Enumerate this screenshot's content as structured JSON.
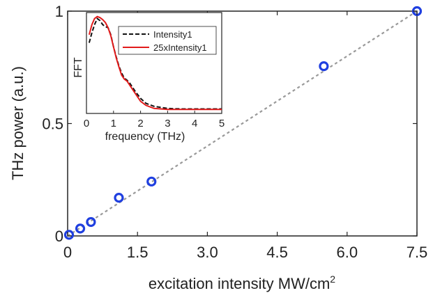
{
  "chart_data": [
    {
      "type": "scatter",
      "xlabel": "excitation intensity MW/cm",
      "xlabel_superscript": "2",
      "ylabel": "THz power (a.u.)",
      "xlim": [
        0,
        7.5
      ],
      "ylim": [
        0,
        1
      ],
      "xticks": [
        "0",
        "1.5",
        "3.0",
        "4.5",
        "6.0",
        "7.5"
      ],
      "xtick_values": [
        0,
        1.5,
        3.0,
        4.5,
        6.0,
        7.5
      ],
      "yticks": [
        "0",
        "0.5",
        "1"
      ],
      "ytick_values": [
        0,
        0.5,
        1
      ],
      "grid": false,
      "series": [
        {
          "marker": "open-circle",
          "color": "#1f3fe0",
          "x": [
            0.03,
            0.27,
            0.5,
            1.1,
            1.8,
            5.5,
            7.5
          ],
          "y": [
            0.005,
            0.033,
            0.062,
            0.17,
            0.242,
            0.755,
            1.0
          ]
        }
      ],
      "fit_line": {
        "style": "dotted",
        "color": "#999999",
        "x": [
          0,
          7.5
        ],
        "y": [
          0,
          1.0
        ]
      }
    },
    {
      "type": "line",
      "inset": true,
      "xlabel": "frequency (THz)",
      "ylabel": "FFT",
      "xlim": [
        0,
        5
      ],
      "ylim": [
        0,
        1
      ],
      "xticks": [
        "0",
        "1",
        "2",
        "3",
        "4",
        "5"
      ],
      "xtick_values": [
        0,
        1,
        2,
        3,
        4,
        5
      ],
      "legend_position": "top-right",
      "series": [
        {
          "name": "Intensity1",
          "style": "dashed",
          "color": "#111111",
          "x": [
            0.1,
            0.2,
            0.3,
            0.4,
            0.5,
            0.6,
            0.7,
            0.8,
            0.9,
            1.0,
            1.1,
            1.2,
            1.3,
            1.4,
            1.5,
            1.6,
            1.8,
            2.0,
            2.2,
            2.5,
            3.0,
            3.5,
            4.0,
            5.0
          ],
          "y": [
            0.7,
            0.8,
            0.88,
            0.94,
            0.92,
            0.88,
            0.86,
            0.85,
            0.78,
            0.66,
            0.56,
            0.47,
            0.4,
            0.35,
            0.33,
            0.3,
            0.22,
            0.15,
            0.1,
            0.07,
            0.05,
            0.045,
            0.045,
            0.045
          ]
        },
        {
          "name": "25xIntensity1",
          "style": "solid",
          "color": "#e21a1a",
          "x": [
            0.1,
            0.2,
            0.3,
            0.4,
            0.5,
            0.6,
            0.7,
            0.8,
            0.9,
            1.0,
            1.1,
            1.2,
            1.3,
            1.4,
            1.5,
            1.6,
            1.8,
            2.0,
            2.2,
            2.5,
            3.0,
            3.5,
            4.0,
            5.0
          ],
          "y": [
            0.78,
            0.88,
            0.94,
            0.96,
            0.95,
            0.93,
            0.9,
            0.85,
            0.77,
            0.66,
            0.55,
            0.46,
            0.38,
            0.34,
            0.32,
            0.28,
            0.2,
            0.12,
            0.08,
            0.05,
            0.04,
            0.04,
            0.04,
            0.04
          ]
        }
      ]
    }
  ]
}
